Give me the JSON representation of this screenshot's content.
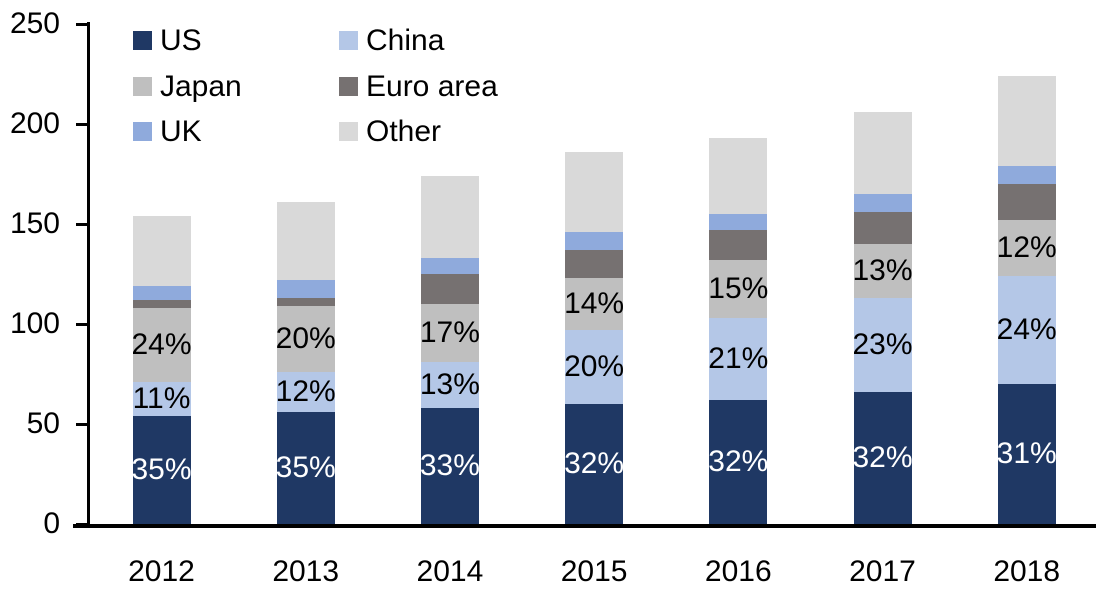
{
  "chart_data": {
    "type": "bar",
    "stacked": true,
    "title": "",
    "background": "#ffffff",
    "axis_color": "#000000",
    "grid": false,
    "categories": [
      "2012",
      "2013",
      "2014",
      "2015",
      "2016",
      "2017",
      "2018"
    ],
    "series": [
      {
        "name": "US",
        "color": "#1F3864",
        "values": [
          54,
          56,
          58,
          60,
          62,
          66,
          70
        ],
        "bar_labels": [
          "35%",
          "35%",
          "33%",
          "32%",
          "32%",
          "32%",
          "31%"
        ],
        "label_color": "#ffffff"
      },
      {
        "name": "China",
        "color": "#B4C7E7",
        "values": [
          17,
          20,
          23,
          37,
          41,
          47,
          54
        ],
        "bar_labels": [
          "11%",
          "12%",
          "13%",
          "20%",
          "21%",
          "23%",
          "24%"
        ],
        "label_color": "#000000"
      },
      {
        "name": "Japan",
        "color": "#BFBFBF",
        "values": [
          37,
          33,
          29,
          26,
          29,
          27,
          28
        ],
        "bar_labels": [
          "24%",
          "20%",
          "17%",
          "14%",
          "15%",
          "13%",
          "12%"
        ],
        "label_color": "#000000"
      },
      {
        "name": "Euro area",
        "color": "#767171",
        "values": [
          4,
          4,
          15,
          14,
          15,
          16,
          18
        ],
        "bar_labels": [
          "",
          "",
          "",
          "",
          "",
          "",
          ""
        ],
        "label_color": "#000000"
      },
      {
        "name": "UK",
        "color": "#8FAADC",
        "values": [
          7,
          9,
          8,
          9,
          8,
          9,
          9
        ],
        "bar_labels": [
          "",
          "",
          "",
          "",
          "",
          "",
          ""
        ],
        "label_color": "#000000"
      },
      {
        "name": "Other",
        "color": "#D9D9D9",
        "values": [
          35,
          39,
          41,
          40,
          38,
          41,
          45
        ],
        "bar_labels": [
          "",
          "",
          "",
          "",
          "",
          "",
          ""
        ],
        "label_color": "#000000"
      }
    ],
    "totals": [
      154,
      161,
      174,
      186,
      193,
      206,
      224
    ],
    "y_axis": {
      "min": 0,
      "max": 250,
      "tick_step": 50,
      "tick_labels": [
        "0",
        "50",
        "100",
        "150",
        "200",
        "250"
      ]
    },
    "legend": {
      "position": "top-left",
      "rows": [
        [
          "US",
          "China"
        ],
        [
          "Japan",
          "Euro area"
        ],
        [
          "UK",
          "Other"
        ]
      ]
    }
  }
}
